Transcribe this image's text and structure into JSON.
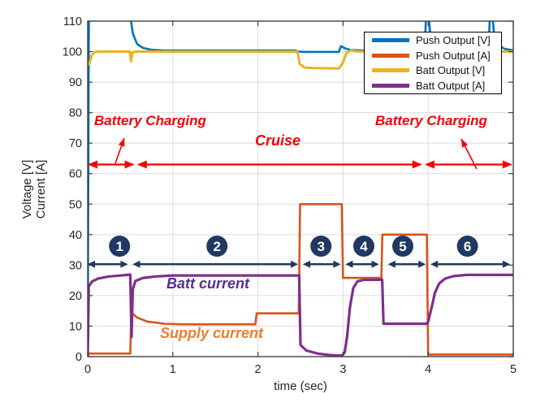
{
  "axes": {
    "xlabel": "time (sec)",
    "ylabel_line1": "Voltage [V]",
    "ylabel_line2": "Current [A]",
    "xticks": [
      0,
      1,
      2,
      3,
      4,
      5
    ],
    "yticks": [
      0,
      10,
      20,
      30,
      40,
      50,
      60,
      70,
      80,
      90,
      100,
      110
    ],
    "xlim": [
      0,
      5
    ],
    "ylim": [
      0,
      110
    ],
    "grid": true,
    "axis_color": "#404040",
    "grid_color": "#dbdbdb",
    "tick_label_color": "#262626"
  },
  "legend": {
    "position": "upper-right-inside",
    "items": [
      {
        "label": "Push Output [V]",
        "color": "#0072BD"
      },
      {
        "label": "Push Output [A]",
        "color": "#D95319"
      },
      {
        "label": "Batt Output [V]",
        "color": "#EDB120"
      },
      {
        "label": "Batt Output [A]",
        "color": "#7E2F8E"
      }
    ]
  },
  "annotations": {
    "battery_charging_left": "Battery Charging",
    "cruise": "Cruise",
    "battery_charging_right": "Battery Charging",
    "batt_current_label": "Batt current",
    "supply_current_label": "Supply current",
    "red_color": "#F50000",
    "navy_color": "#1F3864",
    "batt_current_color": "#5C2D91",
    "supply_current_color": "#ED7D31",
    "timeline_value": 63,
    "red_segments": [
      [
        0,
        0.55
      ],
      [
        0.58,
        3.93
      ],
      [
        3.96,
        4.99
      ]
    ],
    "phase_arrow_value": 30.3,
    "phases": [
      {
        "label": "1",
        "range": [
          0,
          0.5
        ]
      },
      {
        "label": "2",
        "range": [
          0.5,
          2.5
        ]
      },
      {
        "label": "3",
        "range": [
          2.5,
          3.0
        ]
      },
      {
        "label": "4",
        "range": [
          3.0,
          3.45
        ]
      },
      {
        "label": "5",
        "range": [
          3.5,
          4.0
        ]
      },
      {
        "label": "6",
        "range": [
          4.0,
          5.0
        ]
      }
    ]
  },
  "chart_data": {
    "type": "line",
    "title": "",
    "xlabel": "time (sec)",
    "ylabel": "Voltage [V] / Current [A]",
    "xlim": [
      0,
      5
    ],
    "ylim": [
      0,
      110
    ],
    "series": [
      {
        "name": "Push Output [V]",
        "color": "#0072BD",
        "width": 2.6,
        "points": [
          [
            0,
            0
          ],
          [
            0.013,
            112
          ],
          [
            0.5,
            112
          ],
          [
            0.53,
            106
          ],
          [
            0.58,
            102.5
          ],
          [
            0.65,
            101.2
          ],
          [
            0.75,
            100.6
          ],
          [
            0.9,
            100.35
          ],
          [
            2.44,
            100.35
          ],
          [
            2.48,
            100
          ],
          [
            2.55,
            99.9
          ],
          [
            2.95,
            99.9
          ],
          [
            2.975,
            101.8
          ],
          [
            3.03,
            101
          ],
          [
            3.1,
            100.5
          ],
          [
            3.25,
            100.35
          ],
          [
            3.96,
            100.35
          ],
          [
            3.975,
            112
          ],
          [
            4.005,
            112
          ],
          [
            4.03,
            104
          ],
          [
            4.1,
            101.5
          ],
          [
            4.25,
            100.6
          ],
          [
            4.5,
            100.45
          ],
          [
            4.71,
            100.45
          ],
          [
            4.725,
            112
          ],
          [
            4.755,
            112
          ],
          [
            4.78,
            104
          ],
          [
            4.85,
            101.7
          ],
          [
            4.9,
            100.9
          ],
          [
            5,
            100.45
          ]
        ]
      },
      {
        "name": "Push Output [A]",
        "color": "#D95319",
        "width": 2.6,
        "points": [
          [
            0,
            0
          ],
          [
            0.012,
            1
          ],
          [
            0.5,
            1
          ],
          [
            0.512,
            14.5
          ],
          [
            0.58,
            12.8
          ],
          [
            0.7,
            11.5
          ],
          [
            0.9,
            10.8
          ],
          [
            1.1,
            10.6
          ],
          [
            1.97,
            10.6
          ],
          [
            1.985,
            14.2
          ],
          [
            2.48,
            14.2
          ],
          [
            2.495,
            50
          ],
          [
            2.985,
            50
          ],
          [
            3.0,
            25.8
          ],
          [
            3.45,
            25.8
          ],
          [
            3.462,
            40
          ],
          [
            3.985,
            40
          ],
          [
            4.0,
            0.7
          ],
          [
            5,
            0.7
          ]
        ]
      },
      {
        "name": "Batt Output [V]",
        "color": "#EDB120",
        "width": 3,
        "points": [
          [
            0,
            95.8
          ],
          [
            0.02,
            96
          ],
          [
            0.045,
            98.8
          ],
          [
            0.08,
            99.8
          ],
          [
            0.12,
            100
          ],
          [
            0.495,
            100
          ],
          [
            0.51,
            96.8
          ],
          [
            0.525,
            99.6
          ],
          [
            0.56,
            100
          ],
          [
            2.465,
            100
          ],
          [
            2.49,
            96
          ],
          [
            2.55,
            94.8
          ],
          [
            2.65,
            94.6
          ],
          [
            2.955,
            94.5
          ],
          [
            3.0,
            96.5
          ],
          [
            3.04,
            99.5
          ],
          [
            3.09,
            100.4
          ],
          [
            3.16,
            100.05
          ],
          [
            5,
            100
          ]
        ]
      },
      {
        "name": "Batt Output [A]",
        "color": "#7E2F8E",
        "width": 3.2,
        "points": [
          [
            0,
            0
          ],
          [
            0.012,
            23
          ],
          [
            0.05,
            24.6
          ],
          [
            0.12,
            25.6
          ],
          [
            0.25,
            26.3
          ],
          [
            0.42,
            26.7
          ],
          [
            0.5,
            26.9
          ],
          [
            0.515,
            6.5
          ],
          [
            0.53,
            22
          ],
          [
            0.56,
            24.8
          ],
          [
            0.65,
            25.8
          ],
          [
            0.8,
            26.3
          ],
          [
            1.0,
            26.6
          ],
          [
            2.485,
            26.6
          ],
          [
            2.5,
            3.8
          ],
          [
            2.57,
            2
          ],
          [
            2.7,
            1
          ],
          [
            2.85,
            0.5
          ],
          [
            2.99,
            0.35
          ],
          [
            3.02,
            1.5
          ],
          [
            3.05,
            7
          ],
          [
            3.08,
            16
          ],
          [
            3.12,
            22.5
          ],
          [
            3.17,
            24.7
          ],
          [
            3.24,
            25.2
          ],
          [
            3.46,
            25.2
          ],
          [
            3.475,
            10.8
          ],
          [
            3.985,
            10.8
          ],
          [
            4.0,
            11.5
          ],
          [
            4.04,
            16
          ],
          [
            4.08,
            21
          ],
          [
            4.13,
            24
          ],
          [
            4.2,
            25.6
          ],
          [
            4.3,
            26.4
          ],
          [
            4.45,
            26.8
          ],
          [
            5,
            26.8
          ]
        ]
      }
    ]
  }
}
